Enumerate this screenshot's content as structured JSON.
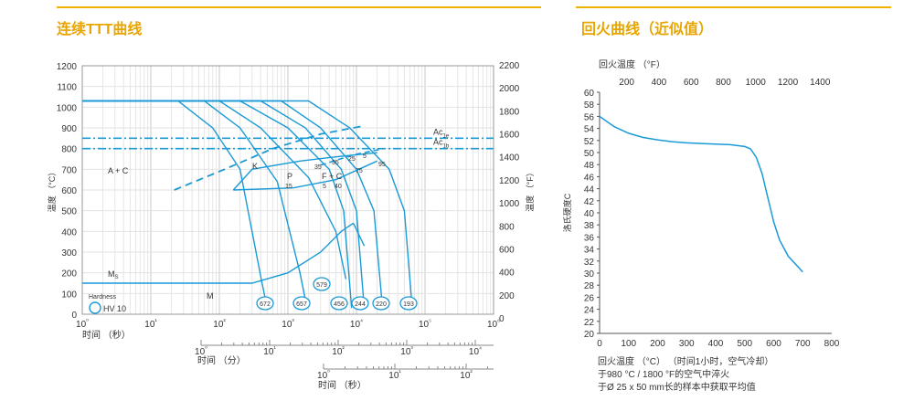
{
  "left_title": "连续TTT曲线",
  "right_title": "回火曲线（近似值）",
  "colors": {
    "accent": "#f0b400",
    "curve": "#1a9ad6",
    "grid": "#d6d6d6",
    "text": "#333333"
  },
  "chart_data": [
    {
      "type": "line",
      "title": "连续TTT曲线",
      "ylabel_left": "温度 （°C）",
      "ylabel_right": "温度 （°F）",
      "ylim": [
        0,
        1200
      ],
      "y_ticks": [
        0,
        100,
        200,
        300,
        400,
        500,
        600,
        700,
        800,
        900,
        1000,
        1100,
        1200
      ],
      "y2_ticks": [
        0,
        200,
        400,
        600,
        800,
        1000,
        1200,
        1400,
        1600,
        1800,
        2000,
        2200
      ],
      "x_log_range_seconds": [
        1,
        1000000
      ],
      "x_axes": [
        {
          "label": "时间 （秒）",
          "ticks": [
            "10⁰",
            "10¹",
            "10²",
            "10³",
            "10⁴",
            "10⁵",
            "10⁶"
          ]
        },
        {
          "label": "时间 （分）",
          "ticks": [
            "10⁰",
            "10¹",
            "10²",
            "10³",
            "10⁴"
          ]
        },
        {
          "label": "时间 （秒）",
          "ticks": [
            "10⁰",
            "10¹",
            "10²"
          ]
        }
      ],
      "ac_lines": [
        {
          "label": "Ac",
          "sub": "1e",
          "temp": 850
        },
        {
          "label": "Ac",
          "sub": "1b",
          "temp": 800
        }
      ],
      "regions": [
        "A + C",
        "K",
        "P",
        "F + C",
        "M",
        "M"
      ],
      "ms_sub": "S",
      "percent_labels": [
        "35",
        "25",
        "5",
        "95",
        "35",
        "75",
        "15",
        "5",
        "40"
      ],
      "legend": {
        "title": "Hardness",
        "item": "HV 10"
      },
      "hardness_values": [
        "672",
        "657",
        "579",
        "456",
        "244",
        "220",
        "193"
      ],
      "cooling_curves": [
        {
          "hardness": "672",
          "points": [
            [
              1,
              1030
            ],
            [
              25,
              1030
            ],
            [
              80,
              900
            ],
            [
              200,
              700
            ],
            [
              420,
              150
            ],
            [
              500,
              30
            ]
          ]
        },
        {
          "hardness": "657",
          "points": [
            [
              1,
              1030
            ],
            [
              60,
              1030
            ],
            [
              200,
              900
            ],
            [
              700,
              640
            ],
            [
              1500,
              200
            ],
            [
              1900,
              30
            ]
          ]
        },
        {
          "hardness": "579",
          "points": [
            [
              1,
              1030
            ],
            [
              100,
              1030
            ],
            [
              400,
              900
            ],
            [
              2000,
              660
            ],
            [
              5000,
              400
            ],
            [
              7000,
              170
            ]
          ]
        },
        {
          "hardness": "456",
          "points": [
            [
              1,
              1030
            ],
            [
              200,
              1030
            ],
            [
              1000,
              900
            ],
            [
              4000,
              700
            ],
            [
              6500,
              500
            ],
            [
              8500,
              30
            ]
          ]
        },
        {
          "hardness": "244",
          "points": [
            [
              1,
              1030
            ],
            [
              400,
              1030
            ],
            [
              1800,
              900
            ],
            [
              6000,
              700
            ],
            [
              10000,
              500
            ],
            [
              13000,
              30
            ]
          ]
        },
        {
          "hardness": "220",
          "points": [
            [
              1,
              1030
            ],
            [
              800,
              1030
            ],
            [
              3000,
              900
            ],
            [
              10000,
              700
            ],
            [
              18000,
              500
            ],
            [
              24000,
              30
            ]
          ]
        },
        {
          "hardness": "193",
          "points": [
            [
              1,
              1030
            ],
            [
              2000,
              1030
            ],
            [
              8000,
              900
            ],
            [
              30000,
              700
            ],
            [
              50000,
              500
            ],
            [
              65000,
              30
            ]
          ]
        }
      ],
      "ms_line": [
        [
          1,
          150
        ],
        [
          300,
          150
        ],
        [
          1000,
          200
        ],
        [
          3000,
          300
        ],
        [
          6000,
          400
        ],
        [
          9000,
          440
        ]
      ],
      "transformation_start_dashed": [
        [
          22,
          600
        ],
        [
          120,
          700
        ],
        [
          600,
          800
        ],
        [
          3000,
          870
        ],
        [
          13000,
          910
        ]
      ]
    },
    {
      "type": "line",
      "title": "回火曲线（近似值）",
      "x_top_label": "回火温度 （°F）",
      "x_top_ticks": [
        200,
        400,
        600,
        800,
        1000,
        1200,
        1400
      ],
      "ylabel": "洛氏硬度C",
      "xlabel": "回火温度 （°C） （时间1小时，空气冷却）",
      "notes": [
        "于980 °C / 1800 °F的空气中淬火",
        "于Ø 25 x 50 mm长的样本中获取平均值"
      ],
      "xlim": [
        0,
        800
      ],
      "ylim": [
        20,
        60
      ],
      "x_ticks": [
        0,
        100,
        200,
        300,
        400,
        500,
        600,
        700,
        800
      ],
      "y_ticks": [
        20,
        22,
        24,
        26,
        28,
        30,
        32,
        34,
        36,
        38,
        40,
        42,
        44,
        46,
        48,
        50,
        52,
        54,
        56,
        58,
        60
      ],
      "x": [
        0,
        50,
        100,
        150,
        200,
        250,
        300,
        350,
        400,
        450,
        500,
        520,
        540,
        560,
        580,
        600,
        620,
        650,
        700
      ],
      "y": [
        56,
        54.3,
        53.2,
        52.5,
        52.1,
        51.8,
        51.6,
        51.5,
        51.4,
        51.3,
        51.0,
        50.6,
        49.2,
        46.5,
        42.5,
        38.5,
        35.5,
        32.8,
        30.2
      ]
    }
  ]
}
